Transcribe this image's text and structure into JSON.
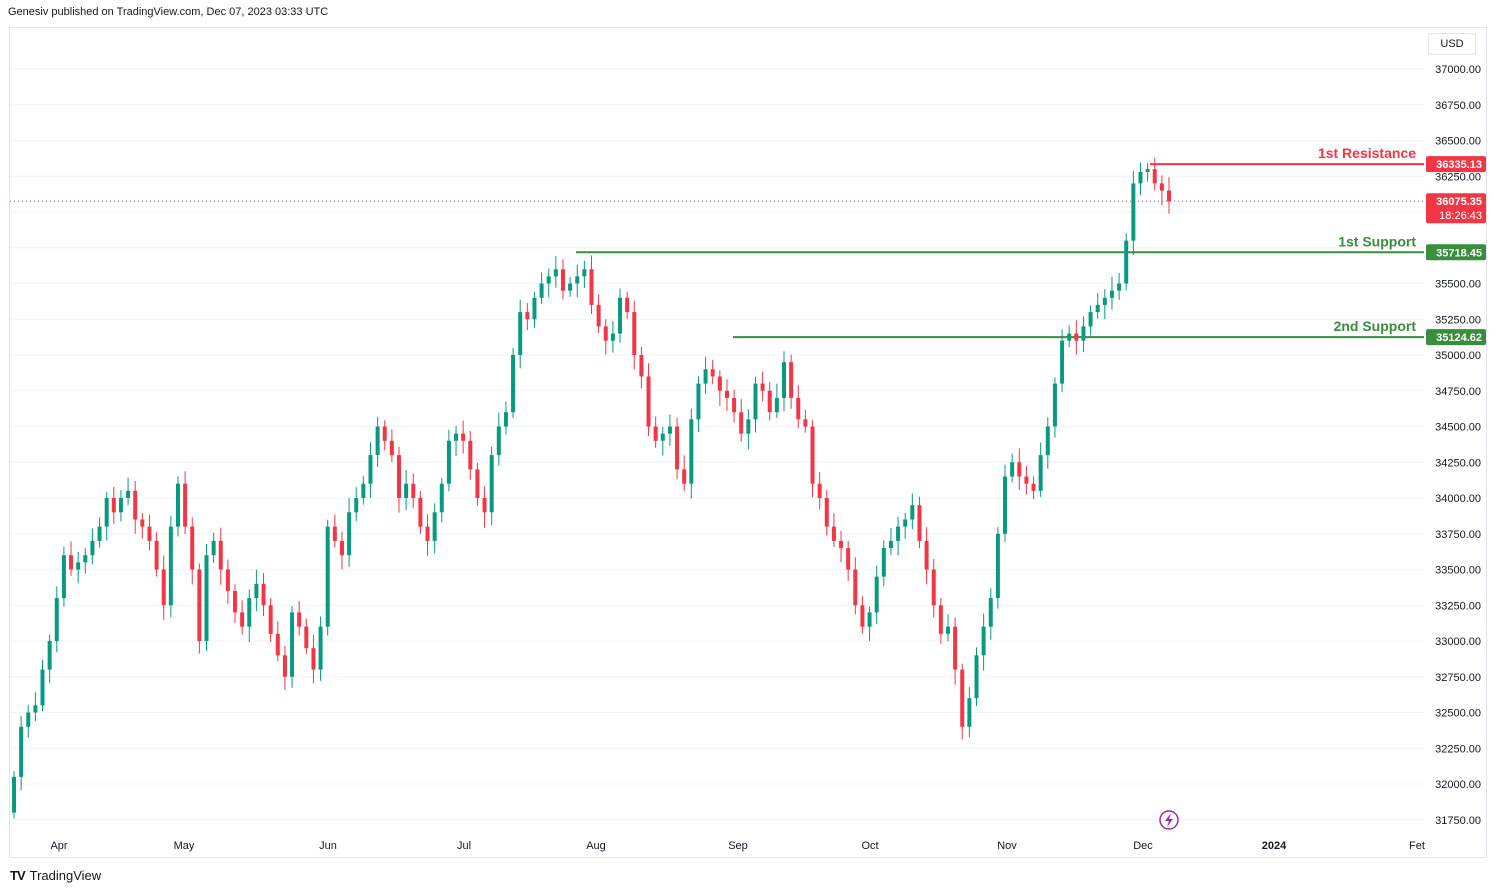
{
  "header": {
    "publisher_text": "Genesiv published on TradingView.com, Dec 07, 2023 03:33 UTC"
  },
  "footer": {
    "brand_logo": "TV",
    "brand_name": "TradingView"
  },
  "currency_button": "USD",
  "colors": {
    "up": "#089981",
    "down": "#f23645",
    "resistance": "#f23645",
    "support": "#388e3c",
    "grid": "#f0f3fa"
  },
  "chart_data": {
    "type": "candlestick",
    "title": "",
    "xlabel": "",
    "ylabel": "",
    "ylim": [
      31700,
      37150
    ],
    "y_ticks": [
      "37000.00",
      "36750.00",
      "36500.00",
      "36250.00",
      "36000.00",
      "35750.00",
      "35500.00",
      "35250.00",
      "35000.00",
      "34750.00",
      "34500.00",
      "34250.00",
      "34000.00",
      "33750.00",
      "33500.00",
      "33250.00",
      "33000.00",
      "32750.00",
      "32500.00",
      "32250.00",
      "32000.00",
      "31750.00"
    ],
    "x_ticks": [
      "Apr",
      "May",
      "Jun",
      "Jul",
      "Aug",
      "Sep",
      "Oct",
      "Nov",
      "Dec",
      "2024",
      "Fet"
    ],
    "last_price": {
      "value": "36075.35",
      "countdown": "18:26:43"
    },
    "levels": [
      {
        "label": "1st Resistance",
        "value": "36335.13",
        "kind": "resistance"
      },
      {
        "label": "1st Support",
        "value": "35718.45",
        "kind": "support"
      },
      {
        "label": "2nd Support",
        "value": "35124.62",
        "kind": "support"
      }
    ],
    "closes": [
      32050,
      32400,
      32500,
      32550,
      32800,
      33000,
      33300,
      33600,
      33500,
      33550,
      33600,
      33700,
      33800,
      34000,
      33900,
      34000,
      34050,
      33850,
      33800,
      33700,
      33500,
      33250,
      33800,
      34100,
      33800,
      33500,
      33000,
      33600,
      33700,
      33500,
      33350,
      33200,
      33100,
      33300,
      33400,
      33250,
      33050,
      32900,
      32750,
      33200,
      33100,
      32950,
      32800,
      33100,
      33800,
      33700,
      33600,
      33900,
      34000,
      34100,
      34300,
      34500,
      34400,
      34300,
      34000,
      34100,
      34000,
      33800,
      33700,
      33900,
      34100,
      34400,
      34450,
      34400,
      34200,
      34000,
      33900,
      34300,
      34500,
      34600,
      35000,
      35300,
      35250,
      35400,
      35500,
      35550,
      35600,
      35450,
      35500,
      35550,
      35600,
      35350,
      35200,
      35100,
      35150,
      35400,
      35300,
      35000,
      34850,
      34500,
      34400,
      34450,
      34500,
      34200,
      34100,
      34550,
      34800,
      34900,
      34850,
      34750,
      34700,
      34600,
      34450,
      34550,
      34800,
      34750,
      34600,
      34700,
      34950,
      34700,
      34550,
      34500,
      34100,
      34000,
      33800,
      33700,
      33650,
      33500,
      33250,
      33100,
      33200,
      33450,
      33650,
      33700,
      33800,
      33850,
      33950,
      33700,
      33500,
      33250,
      33050,
      33100,
      32800,
      32400,
      32600,
      32900,
      33100,
      33300,
      33750,
      34150,
      34250,
      34150,
      34100,
      34050,
      34300,
      34500,
      34800,
      35100,
      35150,
      35100,
      35200,
      35300,
      35350,
      35400,
      35450,
      35500,
      35800,
      36200,
      36280,
      36300,
      36200,
      36150,
      36075
    ]
  }
}
